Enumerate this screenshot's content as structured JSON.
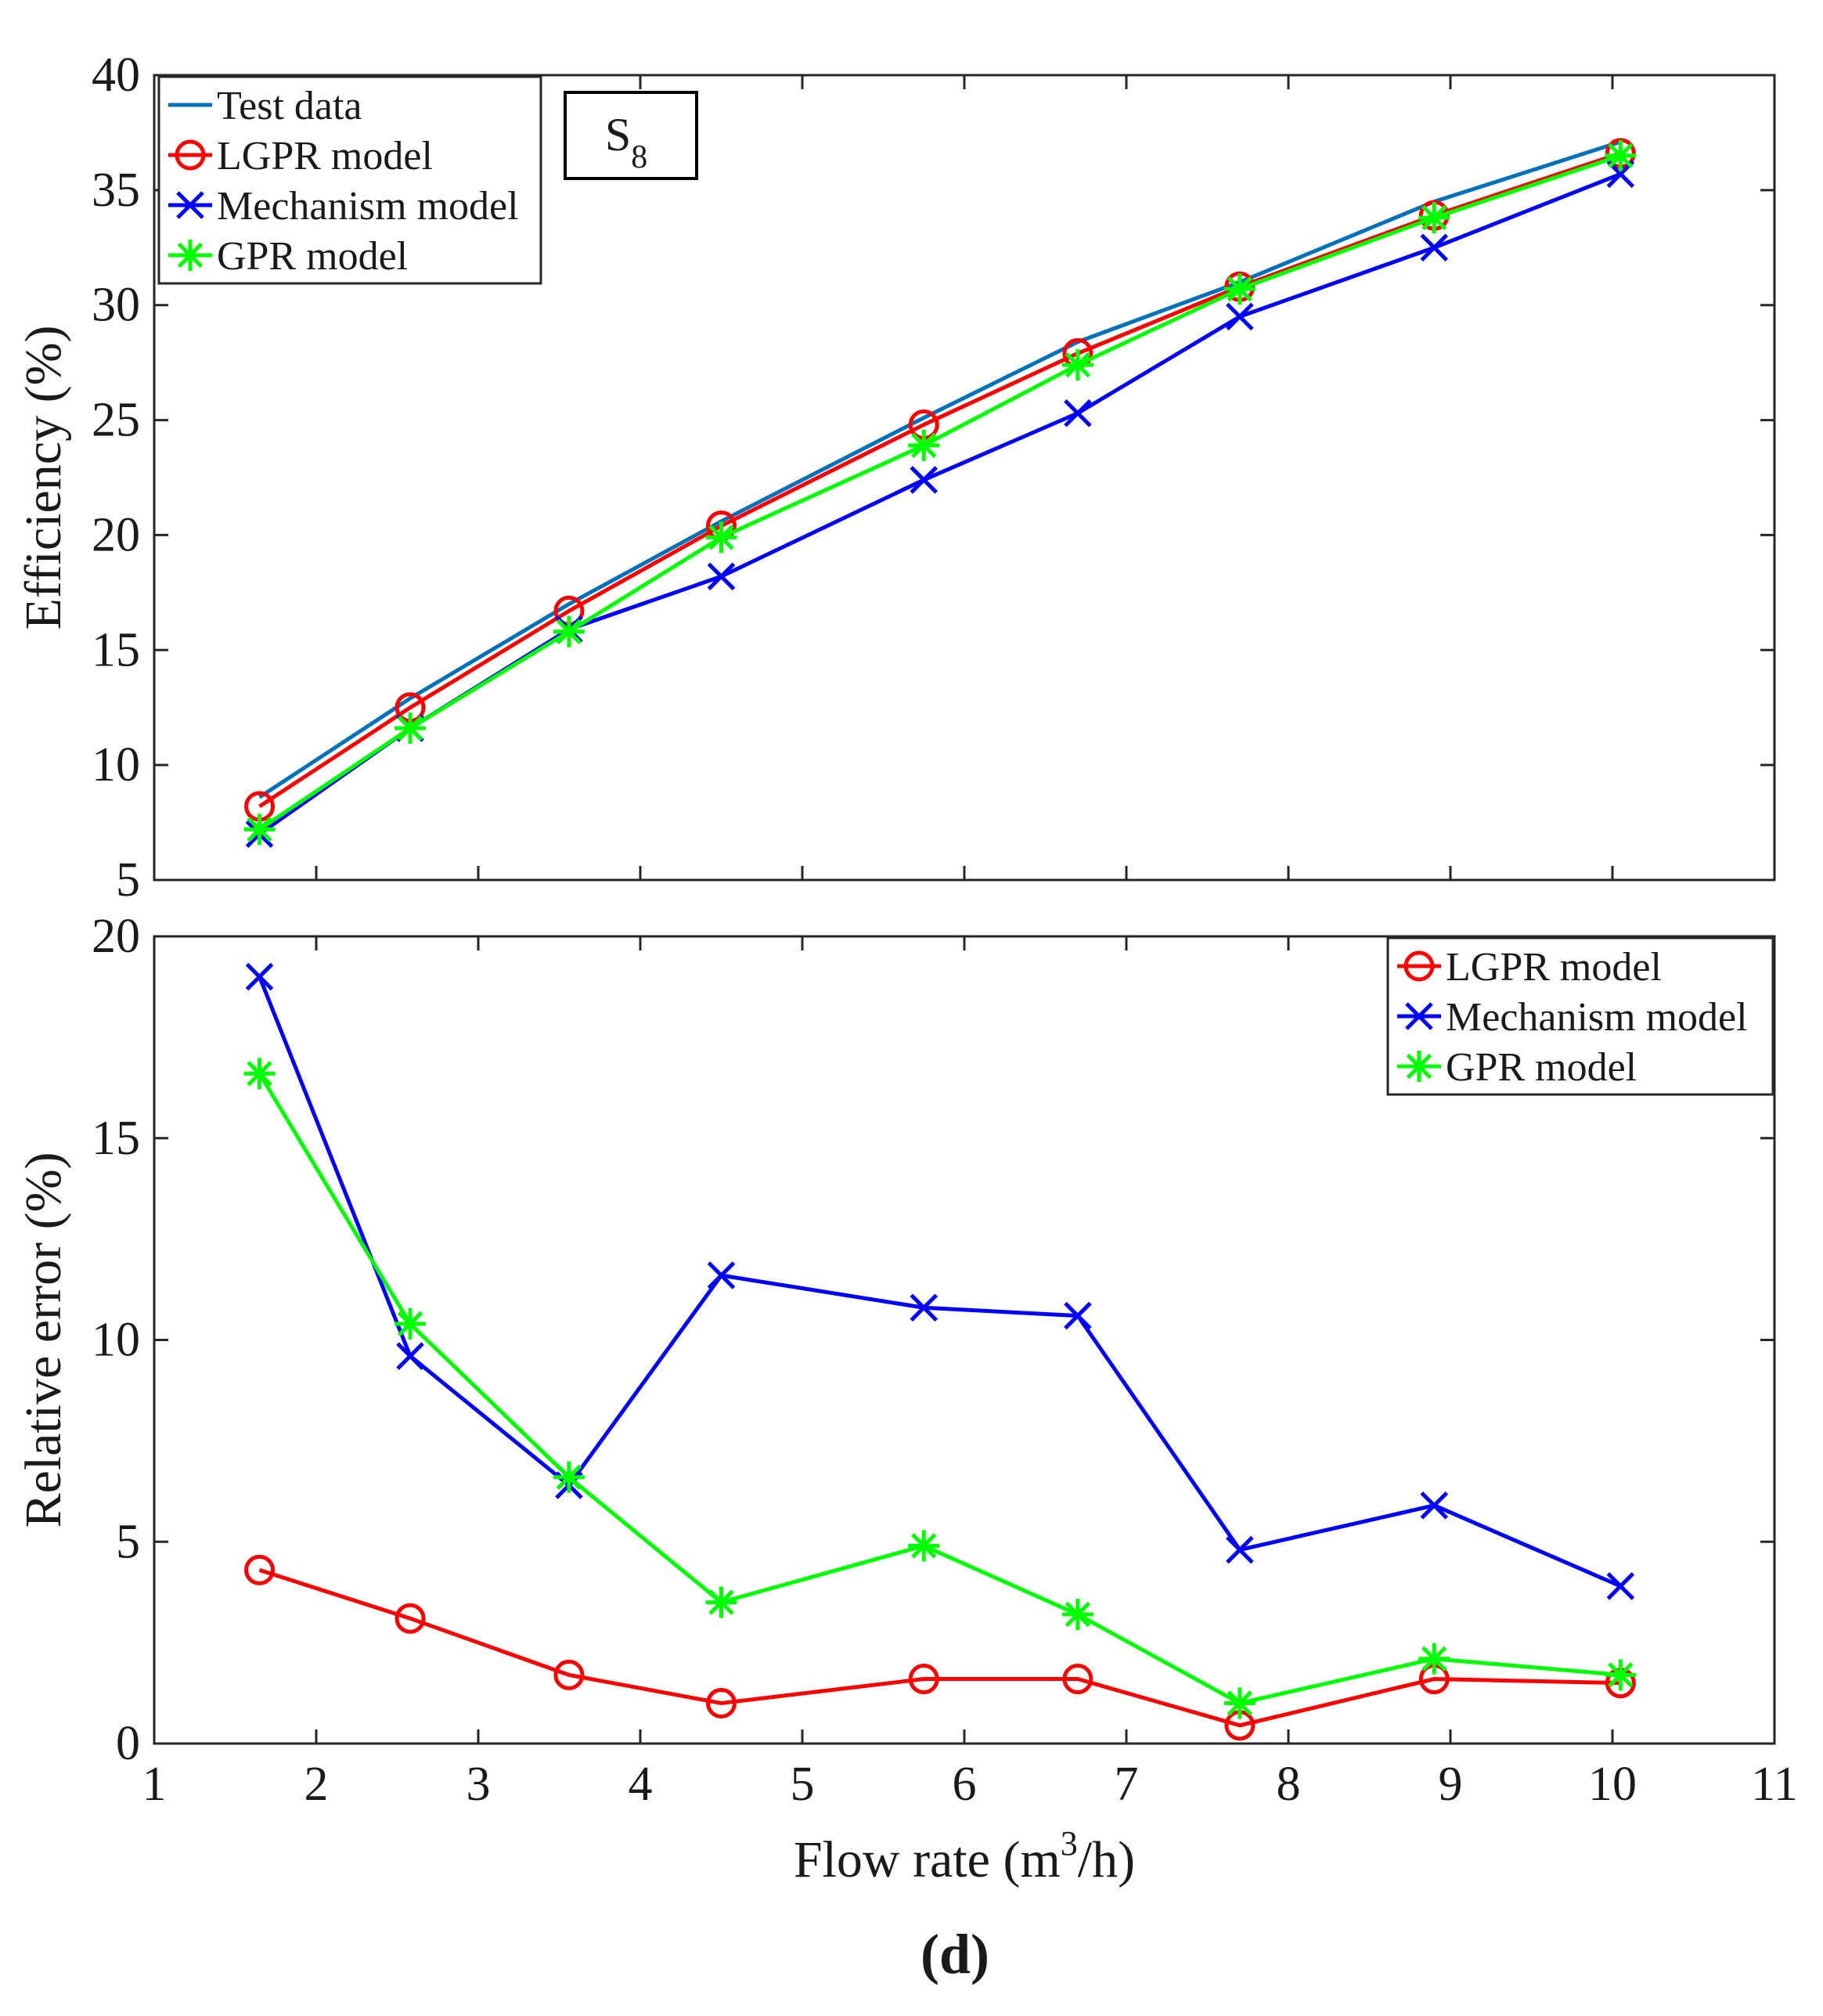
{
  "figure": {
    "panel_label_open": "(",
    "panel_label_letter": "d",
    "panel_label_close": ")"
  },
  "colors": {
    "test": "#0072BD",
    "lgpr": "#FF0000",
    "mech": "#0000FF",
    "gpr": "#00FF00",
    "axis": "#262626",
    "text": "#1a1a1a"
  },
  "chart_data": [
    {
      "id": "efficiency",
      "type": "line",
      "title": "",
      "annotation": {
        "text": "S",
        "subscript": "8"
      },
      "xlabel": "",
      "ylabel": "Efficiency (%)",
      "xlim": [
        1,
        11
      ],
      "ylim": [
        5,
        40
      ],
      "xticks": [
        2,
        3,
        4,
        5,
        6,
        7,
        8,
        9,
        10
      ],
      "xtick_labels": [
        "",
        "",
        "",
        "",
        "",
        "",
        "",
        "",
        ""
      ],
      "yticks": [
        5,
        10,
        15,
        20,
        25,
        30,
        35,
        40
      ],
      "ytick_labels": [
        "5",
        "10",
        "15",
        "20",
        "25",
        "30",
        "35",
        "40"
      ],
      "legend_position": "top-left",
      "x": [
        1.65,
        2.58,
        3.56,
        4.5,
        5.75,
        6.7,
        7.7,
        8.9,
        10.05
      ],
      "series": [
        {
          "key": "test",
          "name": "Test data",
          "marker": "none",
          "values": [
            8.6,
            12.9,
            17.0,
            20.6,
            25.1,
            28.4,
            31.0,
            34.5,
            37.1
          ]
        },
        {
          "key": "lgpr",
          "name": "LGPR model",
          "marker": "circle",
          "values": [
            8.2,
            12.5,
            16.7,
            20.4,
            24.8,
            27.9,
            30.8,
            33.9,
            36.6
          ]
        },
        {
          "key": "mech",
          "name": "Mechanism model",
          "marker": "x",
          "values": [
            7.0,
            11.6,
            15.9,
            18.2,
            22.4,
            25.3,
            29.5,
            32.5,
            35.7
          ]
        },
        {
          "key": "gpr",
          "name": "GPR model",
          "marker": "star",
          "values": [
            7.2,
            11.6,
            15.8,
            19.9,
            23.9,
            27.4,
            30.7,
            33.8,
            36.5
          ]
        }
      ]
    },
    {
      "id": "relative-error",
      "type": "line",
      "title": "",
      "xlabel": "Flow rate (m³/h)",
      "xlabel_parts": {
        "before": "Flow rate (m",
        "sup": "3",
        "after": "/h)"
      },
      "ylabel": "Relative error (%)",
      "xlim": [
        1,
        11
      ],
      "ylim": [
        0,
        20
      ],
      "xticks": [
        1,
        2,
        3,
        4,
        5,
        6,
        7,
        8,
        9,
        10,
        11
      ],
      "xtick_labels": [
        "1",
        "2",
        "3",
        "4",
        "5",
        "6",
        "7",
        "8",
        "9",
        "10",
        "11"
      ],
      "yticks": [
        0,
        5,
        10,
        15,
        20
      ],
      "ytick_labels": [
        "0",
        "5",
        "10",
        "15",
        "20"
      ],
      "legend_position": "top-right",
      "x": [
        1.65,
        2.58,
        3.56,
        4.5,
        5.75,
        6.7,
        7.7,
        8.9,
        10.05
      ],
      "series": [
        {
          "key": "lgpr",
          "name": "LGPR model",
          "marker": "circle",
          "values": [
            4.3,
            3.1,
            1.7,
            1.0,
            1.6,
            1.6,
            0.45,
            1.6,
            1.5
          ]
        },
        {
          "key": "mech",
          "name": "Mechanism model",
          "marker": "x",
          "values": [
            19.0,
            9.6,
            6.4,
            11.6,
            10.8,
            10.6,
            4.8,
            5.9,
            3.9
          ]
        },
        {
          "key": "gpr",
          "name": "GPR model",
          "marker": "star",
          "values": [
            16.6,
            10.4,
            6.6,
            3.5,
            4.9,
            3.2,
            1.0,
            2.1,
            1.7
          ]
        }
      ]
    }
  ]
}
